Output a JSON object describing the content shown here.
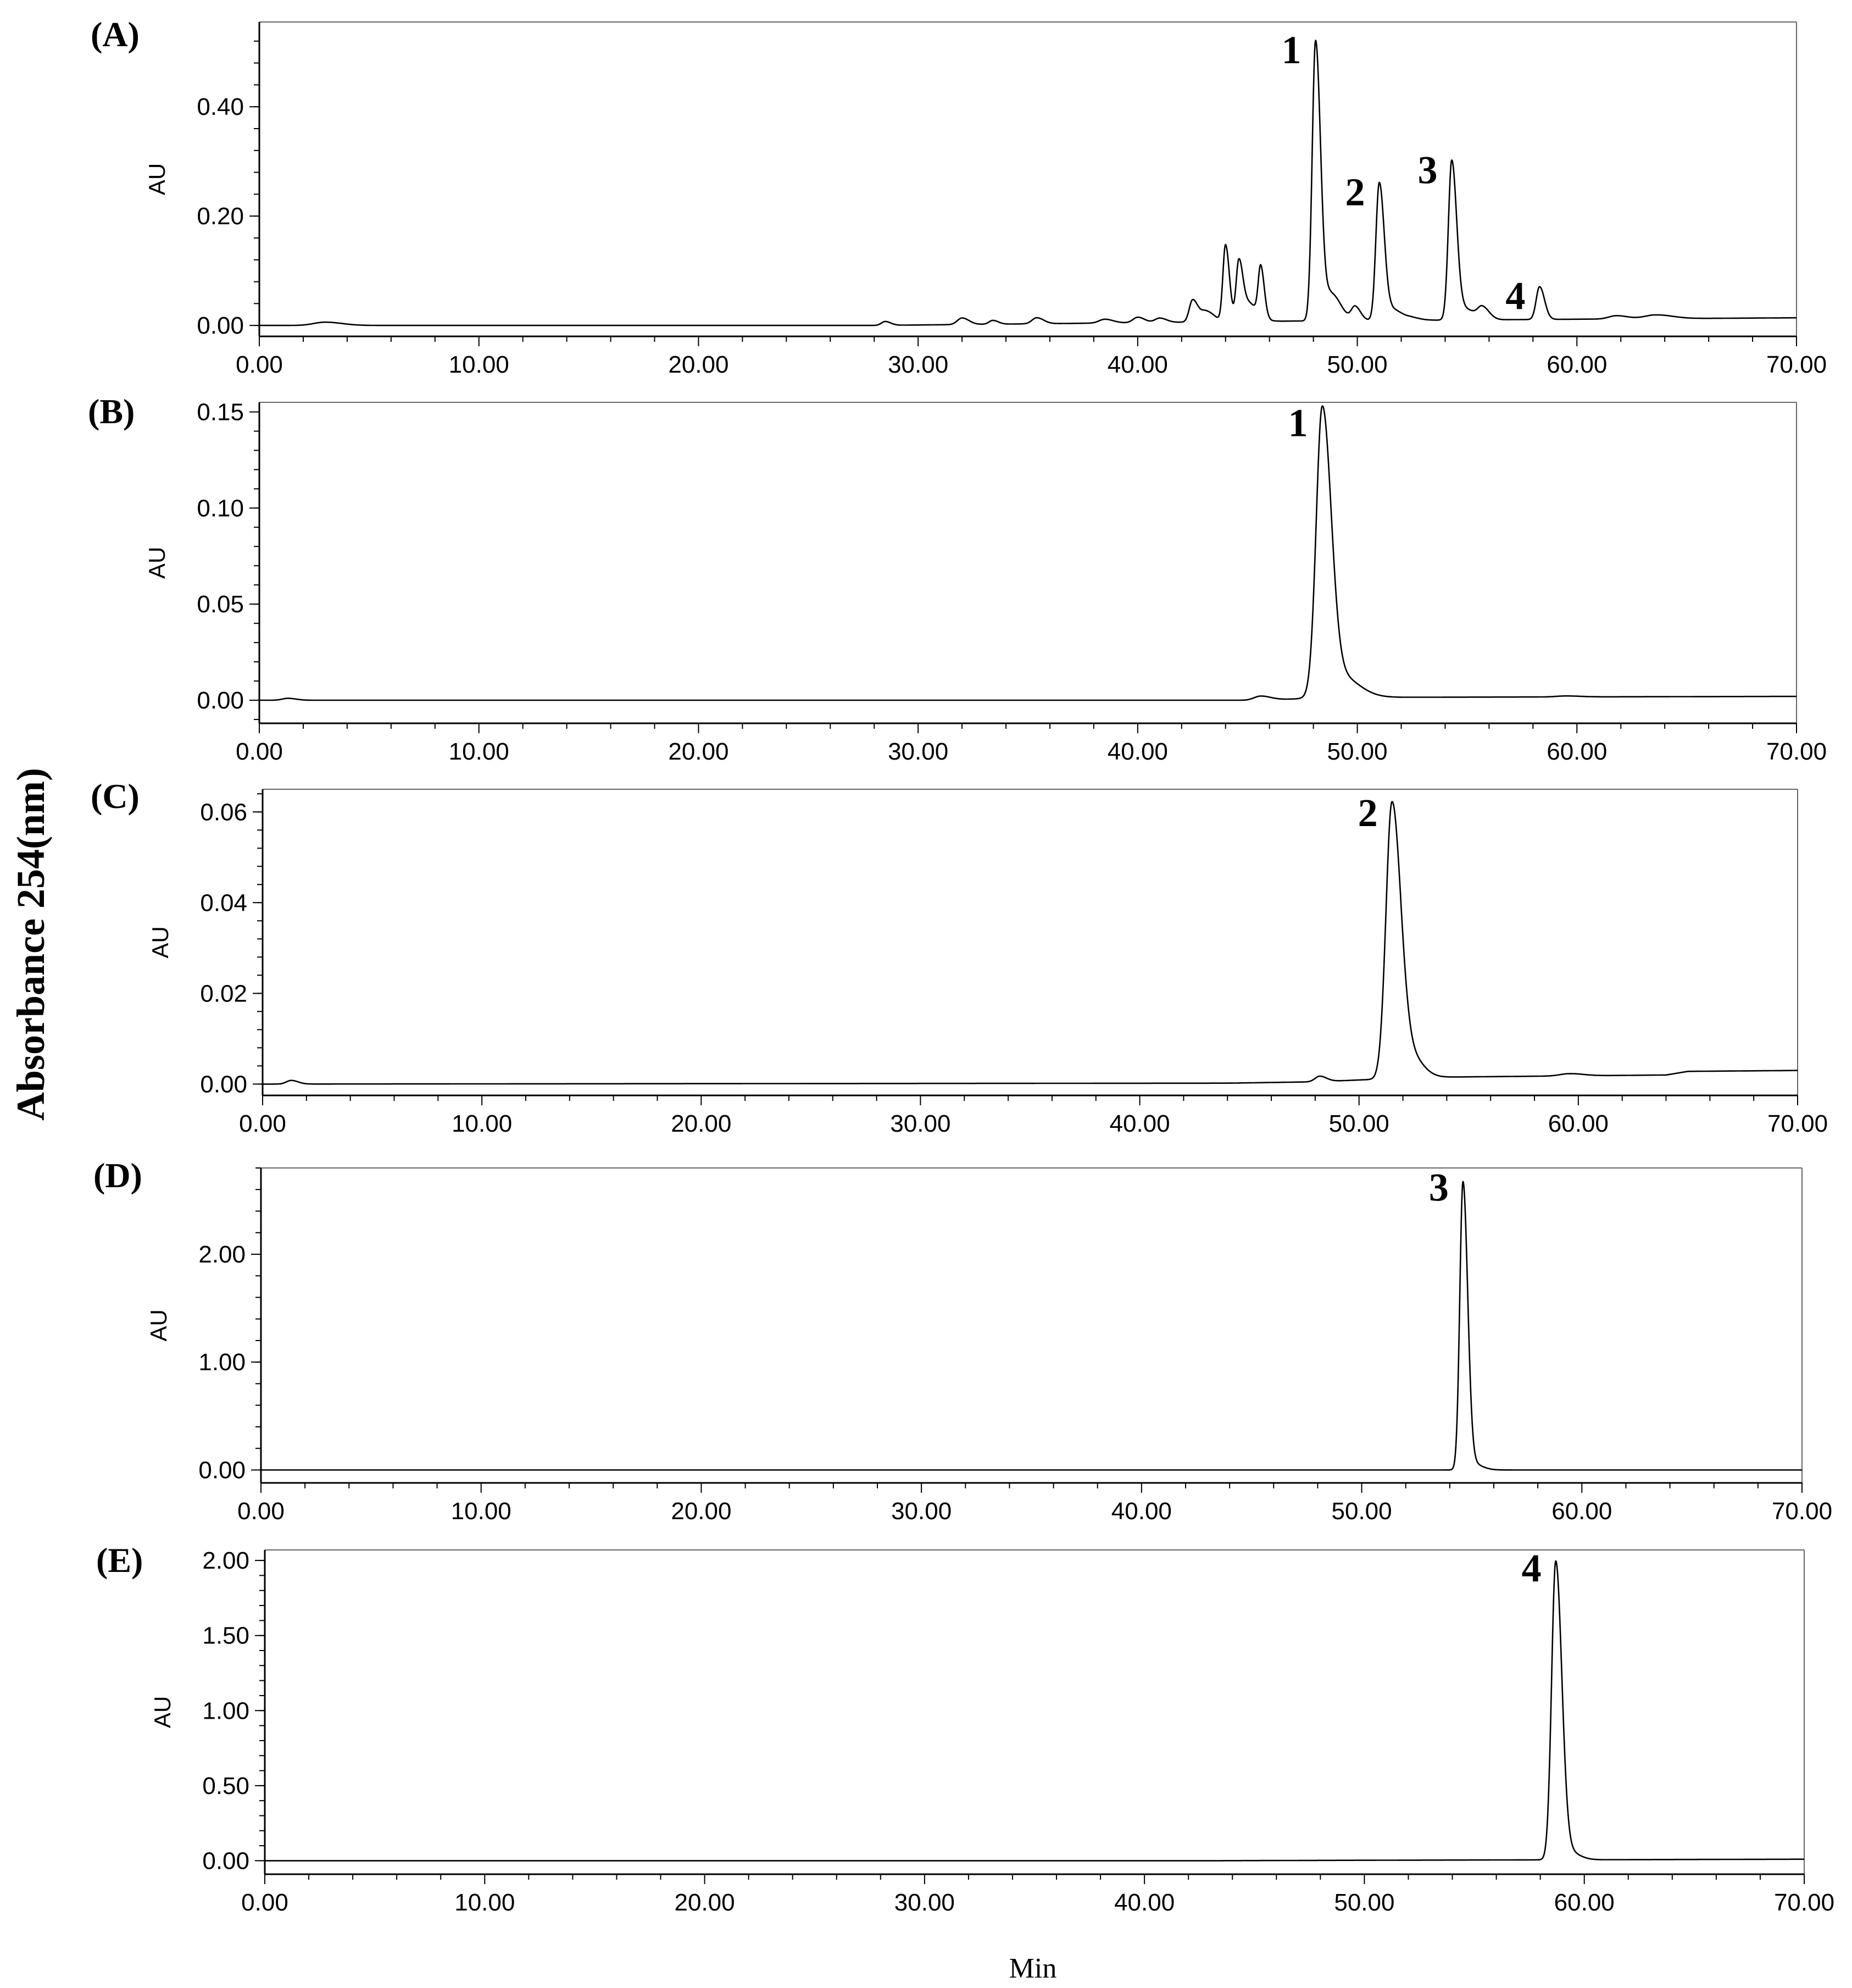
{
  "figure": {
    "ylabel": "Absorbance 254(nm)",
    "xlabel": "Min"
  },
  "chart_data": [
    {
      "panel": "(A)",
      "type": "line",
      "xlabel": "",
      "ylabel": "AU",
      "xlim": [
        0,
        70
      ],
      "ylim": [
        -0.02,
        0.555
      ],
      "xticks": [
        0,
        10,
        20,
        30,
        40,
        50,
        60,
        70
      ],
      "xtick_labels": [
        "0.00",
        "10.00",
        "20.00",
        "30.00",
        "40.00",
        "50.00",
        "60.00",
        "70.00"
      ],
      "yticks": [
        0,
        0.2,
        0.4
      ],
      "ytick_labels": [
        "0.00",
        "0.20",
        "0.40"
      ],
      "baseline": [
        [
          0,
          0.0
        ],
        [
          28,
          0.0
        ],
        [
          40,
          0.005
        ],
        [
          47,
          0.008
        ],
        [
          70,
          0.014
        ]
      ],
      "peaks": [
        {
          "t": 3.0,
          "h": 0.006,
          "w": 0.6
        },
        {
          "t": 28.5,
          "h": 0.007,
          "w": 0.2
        },
        {
          "t": 32.0,
          "h": 0.012,
          "w": 0.25
        },
        {
          "t": 33.4,
          "h": 0.007,
          "w": 0.2
        },
        {
          "t": 35.4,
          "h": 0.011,
          "w": 0.25
        },
        {
          "t": 38.5,
          "h": 0.007,
          "w": 0.3
        },
        {
          "t": 40.0,
          "h": 0.01,
          "w": 0.25
        },
        {
          "t": 41.0,
          "h": 0.008,
          "w": 0.25
        },
        {
          "t": 42.5,
          "h": 0.04,
          "w": 0.18
        },
        {
          "t": 43.1,
          "h": 0.02,
          "w": 0.3
        },
        {
          "t": 44.0,
          "h": 0.14,
          "w": 0.14
        },
        {
          "t": 44.6,
          "h": 0.1,
          "w": 0.14
        },
        {
          "t": 45.0,
          "h": 0.035,
          "w": 0.35
        },
        {
          "t": 45.6,
          "h": 0.09,
          "w": 0.13
        },
        {
          "t": 48.1,
          "h": 0.51,
          "w": 0.18
        },
        {
          "t": 48.8,
          "h": 0.05,
          "w": 0.35
        },
        {
          "t": 49.9,
          "h": 0.025,
          "w": 0.2
        },
        {
          "t": 51.0,
          "h": 0.25,
          "w": 0.18
        },
        {
          "t": 51.6,
          "h": 0.02,
          "w": 0.35
        },
        {
          "t": 52.5,
          "h": 0.004,
          "w": 0.3
        },
        {
          "t": 54.3,
          "h": 0.29,
          "w": 0.18
        },
        {
          "t": 54.9,
          "h": 0.02,
          "w": 0.35
        },
        {
          "t": 55.7,
          "h": 0.022,
          "w": 0.25
        },
        {
          "t": 58.3,
          "h": 0.06,
          "w": 0.18
        },
        {
          "t": 61.8,
          "h": 0.006,
          "w": 0.4
        },
        {
          "t": 63.6,
          "h": 0.007,
          "w": 0.6
        }
      ],
      "annotations": [
        {
          "text": "1",
          "x": 48.1,
          "y": 0.51
        },
        {
          "text": "2",
          "x": 51.0,
          "y": 0.25
        },
        {
          "text": "3",
          "x": 54.3,
          "y": 0.29
        },
        {
          "text": "4",
          "x": 58.3,
          "y": 0.06
        }
      ]
    },
    {
      "panel": "(B)",
      "type": "line",
      "xlabel": "",
      "ylabel": "AU",
      "xlim": [
        0,
        70
      ],
      "ylim": [
        -0.012,
        0.155
      ],
      "xticks": [
        0,
        10,
        20,
        30,
        40,
        50,
        60,
        70
      ],
      "xtick_labels": [
        "0.00",
        "10.00",
        "20.00",
        "30.00",
        "40.00",
        "50.00",
        "60.00",
        "70.00"
      ],
      "yticks": [
        0,
        0.05,
        0.1,
        0.15
      ],
      "ytick_labels": [
        "0.00",
        "0.05",
        "0.10",
        "0.15"
      ],
      "baseline": [
        [
          0,
          0.0
        ],
        [
          45,
          0.0
        ],
        [
          50,
          0.0015
        ],
        [
          70,
          0.002
        ]
      ],
      "peaks": [
        {
          "t": 1.3,
          "h": 0.001,
          "w": 0.3
        },
        {
          "t": 45.6,
          "h": 0.002,
          "w": 0.35
        },
        {
          "t": 48.4,
          "h": 0.146,
          "w": 0.32
        },
        {
          "t": 49.1,
          "h": 0.012,
          "w": 0.7
        },
        {
          "t": 59.5,
          "h": 0.0005,
          "w": 0.5
        }
      ],
      "annotations": [
        {
          "text": "1",
          "x": 48.4,
          "y": 0.146
        }
      ]
    },
    {
      "panel": "(C)",
      "type": "line",
      "xlabel": "",
      "ylabel": "AU",
      "xlim": [
        0,
        70
      ],
      "ylim": [
        -0.0025,
        0.065
      ],
      "xticks": [
        0,
        10,
        20,
        30,
        40,
        50,
        60,
        70
      ],
      "xtick_labels": [
        "0.00",
        "10.00",
        "20.00",
        "30.00",
        "40.00",
        "50.00",
        "60.00",
        "70.00"
      ],
      "yticks": [
        0,
        0.02,
        0.04,
        0.06
      ],
      "ytick_labels": [
        "0.00",
        "0.02",
        "0.04",
        "0.06"
      ],
      "baseline": [
        [
          0,
          0.0
        ],
        [
          44,
          0.0002
        ],
        [
          48,
          0.0005
        ],
        [
          53,
          0.0015
        ],
        [
          64,
          0.002
        ],
        [
          65,
          0.0028
        ],
        [
          70,
          0.003
        ]
      ],
      "peaks": [
        {
          "t": 1.3,
          "h": 0.0008,
          "w": 0.25
        },
        {
          "t": 48.2,
          "h": 0.0012,
          "w": 0.25
        },
        {
          "t": 51.5,
          "h": 0.0605,
          "w": 0.32
        },
        {
          "t": 52.3,
          "h": 0.005,
          "w": 0.45
        },
        {
          "t": 59.6,
          "h": 0.0005,
          "w": 0.5
        }
      ],
      "annotations": [
        {
          "text": "2",
          "x": 51.5,
          "y": 0.0605
        }
      ]
    },
    {
      "panel": "(D)",
      "type": "line",
      "xlabel": "",
      "ylabel": "AU",
      "xlim": [
        0,
        70
      ],
      "ylim": [
        -0.12,
        2.8
      ],
      "xticks": [
        0,
        10,
        20,
        30,
        40,
        50,
        60,
        70
      ],
      "xtick_labels": [
        "0.00",
        "10.00",
        "20.00",
        "30.00",
        "40.00",
        "50.00",
        "60.00",
        "70.00"
      ],
      "yticks": [
        0,
        1,
        2
      ],
      "ytick_labels": [
        "0.00",
        "1.00",
        "2.00"
      ],
      "baseline": [
        [
          0,
          0.0
        ],
        [
          70,
          0.0
        ]
      ],
      "peaks": [
        {
          "t": 54.6,
          "h": 2.65,
          "w": 0.17
        },
        {
          "t": 55.0,
          "h": 0.06,
          "w": 0.35
        }
      ],
      "annotations": [
        {
          "text": "3",
          "x": 54.6,
          "y": 2.65
        }
      ]
    },
    {
      "panel": "(E)",
      "type": "line",
      "xlabel": "",
      "ylabel": "AU",
      "xlim": [
        0,
        70
      ],
      "ylim": [
        -0.09,
        2.07
      ],
      "xticks": [
        0,
        10,
        20,
        30,
        40,
        50,
        60,
        70
      ],
      "xtick_labels": [
        "0.00",
        "10.00",
        "20.00",
        "30.00",
        "40.00",
        "50.00",
        "60.00",
        "70.00"
      ],
      "yticks": [
        0,
        0.5,
        1,
        1.5,
        2
      ],
      "ytick_labels": [
        "0.00",
        "0.50",
        "1.00",
        "1.50",
        "2.00"
      ],
      "baseline": [
        [
          0,
          0.0
        ],
        [
          43,
          0.0
        ],
        [
          50,
          0.003
        ],
        [
          70,
          0.01
        ]
      ],
      "peaks": [
        {
          "t": 58.7,
          "h": 1.97,
          "w": 0.22
        },
        {
          "t": 59.2,
          "h": 0.06,
          "w": 0.4
        }
      ],
      "annotations": [
        {
          "text": "4",
          "x": 58.7,
          "y": 1.97
        }
      ]
    }
  ]
}
